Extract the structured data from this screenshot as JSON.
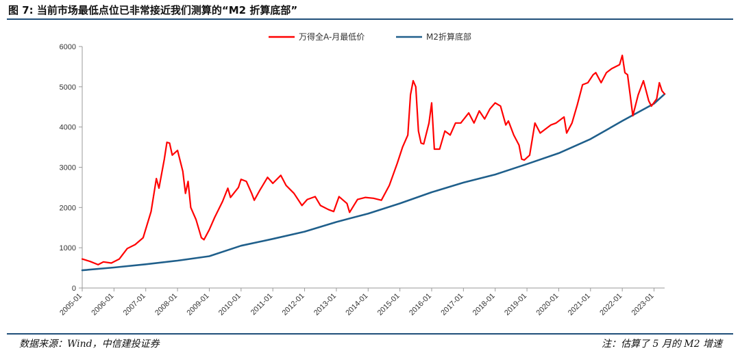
{
  "title": "图 7: 当前市场最低点位已非常接近我们测算的“M2 折算底部”",
  "source": "数据来源：Wind，中信建投证券",
  "note": "注：估算了 5 月的 M2 增速",
  "colors": {
    "series_red": "#ff0000",
    "series_blue": "#1f5f8b",
    "rule": "#1f4e79"
  },
  "chart_data": {
    "type": "line",
    "title": "",
    "xlabel": "",
    "ylabel": "",
    "ylim": [
      0,
      6000
    ],
    "yticks": [
      "0",
      "1000",
      "2000",
      "3000",
      "4000",
      "5000",
      "6000"
    ],
    "xticks": [
      "2005-01",
      "2006-01",
      "2007-01",
      "2008-01",
      "2009-01",
      "2010-01",
      "2011-01",
      "2012-01",
      "2013-01",
      "2014-01",
      "2015-01",
      "2016-01",
      "2017-01",
      "2018-01",
      "2019-01",
      "2020-01",
      "2021-01",
      "2022-01",
      "2023-01"
    ],
    "x_range": [
      "2005-01",
      "2023-05"
    ],
    "grid": false,
    "legend_position": "top",
    "series": [
      {
        "name": "万得全A-月最低价",
        "color": "#ff0000",
        "points": [
          [
            "2005-01",
            720
          ],
          [
            "2005-04",
            660
          ],
          [
            "2005-07",
            580
          ],
          [
            "2005-09",
            650
          ],
          [
            "2005-12",
            620
          ],
          [
            "2006-03",
            720
          ],
          [
            "2006-06",
            980
          ],
          [
            "2006-09",
            1080
          ],
          [
            "2006-12",
            1250
          ],
          [
            "2007-03",
            1900
          ],
          [
            "2007-05",
            2720
          ],
          [
            "2007-06",
            2480
          ],
          [
            "2007-08",
            3200
          ],
          [
            "2007-09",
            3620
          ],
          [
            "2007-10",
            3600
          ],
          [
            "2007-11",
            3300
          ],
          [
            "2008-01",
            3420
          ],
          [
            "2008-03",
            2900
          ],
          [
            "2008-04",
            2350
          ],
          [
            "2008-05",
            2650
          ],
          [
            "2008-06",
            2000
          ],
          [
            "2008-08",
            1700
          ],
          [
            "2008-10",
            1250
          ],
          [
            "2008-11",
            1200
          ],
          [
            "2009-01",
            1450
          ],
          [
            "2009-03",
            1750
          ],
          [
            "2009-06",
            2150
          ],
          [
            "2009-08",
            2480
          ],
          [
            "2009-09",
            2250
          ],
          [
            "2009-12",
            2500
          ],
          [
            "2010-01",
            2700
          ],
          [
            "2010-03",
            2650
          ],
          [
            "2010-05",
            2350
          ],
          [
            "2010-06",
            2180
          ],
          [
            "2010-08",
            2420
          ],
          [
            "2010-11",
            2750
          ],
          [
            "2011-01",
            2600
          ],
          [
            "2011-04",
            2800
          ],
          [
            "2011-06",
            2550
          ],
          [
            "2011-09",
            2350
          ],
          [
            "2011-12",
            2050
          ],
          [
            "2012-02",
            2200
          ],
          [
            "2012-05",
            2270
          ],
          [
            "2012-07",
            2050
          ],
          [
            "2012-10",
            1950
          ],
          [
            "2012-12",
            1900
          ],
          [
            "2013-02",
            2270
          ],
          [
            "2013-05",
            2100
          ],
          [
            "2013-06",
            1880
          ],
          [
            "2013-09",
            2200
          ],
          [
            "2013-12",
            2250
          ],
          [
            "2014-03",
            2230
          ],
          [
            "2014-06",
            2180
          ],
          [
            "2014-09",
            2550
          ],
          [
            "2014-12",
            3100
          ],
          [
            "2015-02",
            3500
          ],
          [
            "2015-04",
            3800
          ],
          [
            "2015-05",
            4800
          ],
          [
            "2015-06",
            5150
          ],
          [
            "2015-07",
            5000
          ],
          [
            "2015-08",
            3900
          ],
          [
            "2015-09",
            3600
          ],
          [
            "2015-10",
            3580
          ],
          [
            "2015-12",
            4100
          ],
          [
            "2016-01",
            4600
          ],
          [
            "2016-02",
            3450
          ],
          [
            "2016-04",
            3450
          ],
          [
            "2016-06",
            3900
          ],
          [
            "2016-08",
            3800
          ],
          [
            "2016-10",
            4100
          ],
          [
            "2016-12",
            4100
          ],
          [
            "2017-03",
            4350
          ],
          [
            "2017-05",
            4100
          ],
          [
            "2017-07",
            4400
          ],
          [
            "2017-09",
            4200
          ],
          [
            "2017-11",
            4450
          ],
          [
            "2018-01",
            4600
          ],
          [
            "2018-03",
            4520
          ],
          [
            "2018-05",
            4050
          ],
          [
            "2018-06",
            4150
          ],
          [
            "2018-08",
            3800
          ],
          [
            "2018-10",
            3550
          ],
          [
            "2018-11",
            3200
          ],
          [
            "2018-12",
            3180
          ],
          [
            "2019-02",
            3300
          ],
          [
            "2019-04",
            4100
          ],
          [
            "2019-06",
            3850
          ],
          [
            "2019-08",
            3950
          ],
          [
            "2019-10",
            4050
          ],
          [
            "2019-12",
            4100
          ],
          [
            "2020-03",
            4250
          ],
          [
            "2020-04",
            3850
          ],
          [
            "2020-06",
            4100
          ],
          [
            "2020-08",
            4550
          ],
          [
            "2020-10",
            5050
          ],
          [
            "2020-12",
            5100
          ],
          [
            "2021-02",
            5300
          ],
          [
            "2021-03",
            5350
          ],
          [
            "2021-05",
            5100
          ],
          [
            "2021-07",
            5350
          ],
          [
            "2021-09",
            5450
          ],
          [
            "2021-12",
            5550
          ],
          [
            "2022-01",
            5780
          ],
          [
            "2022-02",
            5350
          ],
          [
            "2022-03",
            5300
          ],
          [
            "2022-05",
            4280
          ],
          [
            "2022-07",
            4800
          ],
          [
            "2022-09",
            5150
          ],
          [
            "2022-11",
            4650
          ],
          [
            "2022-12",
            4520
          ],
          [
            "2023-02",
            4700
          ],
          [
            "2023-03",
            5100
          ],
          [
            "2023-04",
            4900
          ],
          [
            "2023-05",
            4820
          ]
        ]
      },
      {
        "name": "M2折算底部",
        "color": "#1f5f8b",
        "points": [
          [
            "2005-01",
            440
          ],
          [
            "2006-01",
            510
          ],
          [
            "2007-01",
            590
          ],
          [
            "2008-01",
            680
          ],
          [
            "2009-01",
            790
          ],
          [
            "2010-01",
            1050
          ],
          [
            "2011-01",
            1220
          ],
          [
            "2012-01",
            1400
          ],
          [
            "2013-01",
            1640
          ],
          [
            "2014-01",
            1850
          ],
          [
            "2015-01",
            2100
          ],
          [
            "2016-01",
            2380
          ],
          [
            "2017-01",
            2620
          ],
          [
            "2018-01",
            2820
          ],
          [
            "2019-01",
            3080
          ],
          [
            "2020-01",
            3350
          ],
          [
            "2021-01",
            3700
          ],
          [
            "2022-01",
            4150
          ],
          [
            "2023-01",
            4580
          ],
          [
            "2023-05",
            4820
          ]
        ]
      }
    ]
  }
}
